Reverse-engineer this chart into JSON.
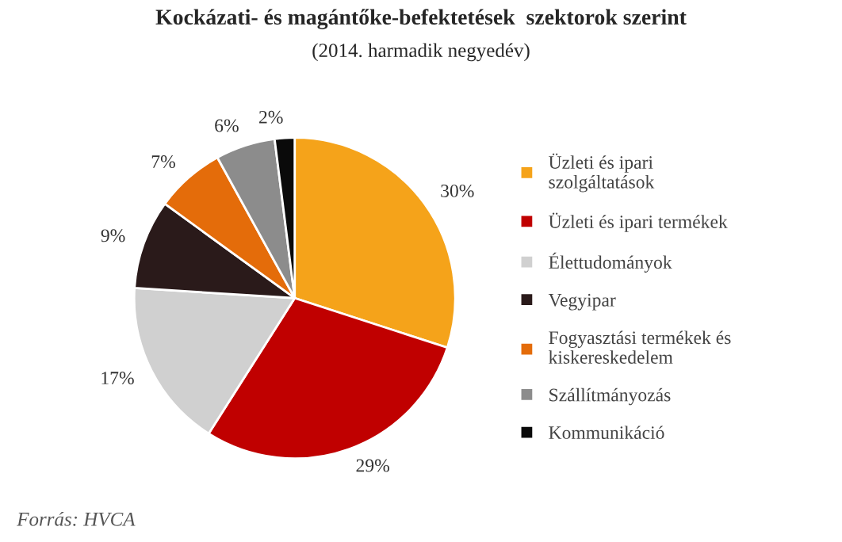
{
  "chart_data": {
    "type": "pie",
    "title": "Kockázati- és magántőke-befektetések  szektorok szerint",
    "subtitle": "(2014. harmadik negyedév)",
    "categories": [
      "Üzleti és ipari\nszolgáltatások",
      "Üzleti és ipari termékek",
      "Élettudományok",
      "Vegyipar",
      "Fogyasztási termékek és\nkiskereskedelem",
      "Szállítmányozás",
      "Kommunikáció"
    ],
    "values": [
      30,
      29,
      17,
      9,
      7,
      6,
      2
    ],
    "colors": [
      "#f5a31a",
      "#c00000",
      "#d0d0d0",
      "#2a1a1a",
      "#e46c0a",
      "#8c8c8c",
      "#0a0a0a"
    ],
    "value_labels": [
      "30%",
      "29%",
      "17%",
      "9%",
      "7%",
      "6%",
      "2%"
    ],
    "legend": "right",
    "annotations": [
      "Forrás: HVCA"
    ]
  }
}
